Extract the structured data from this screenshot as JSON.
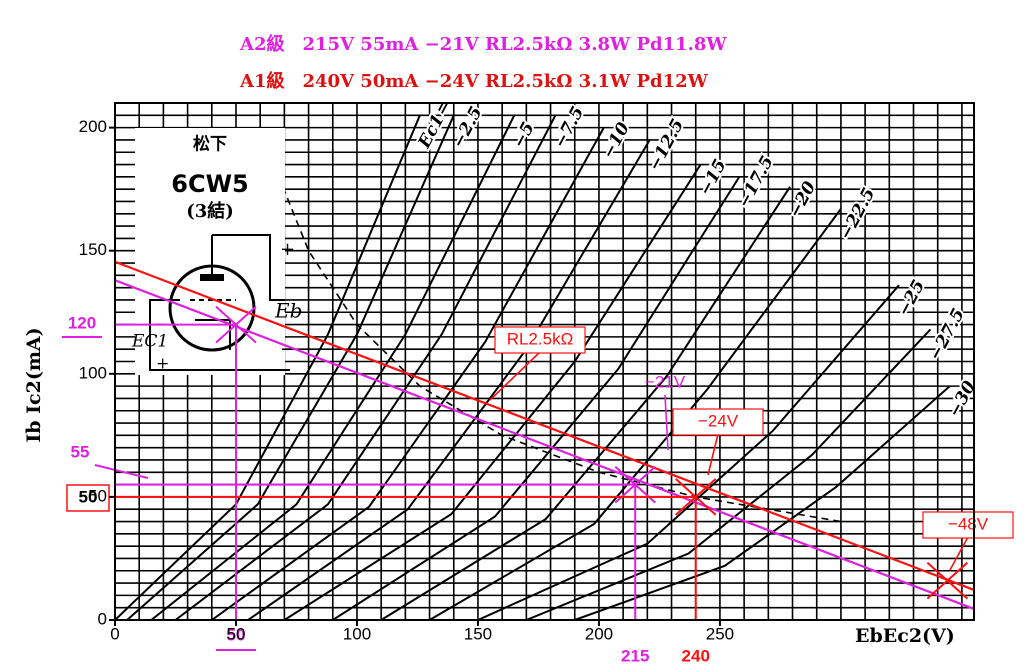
{
  "chart_data": {
    "type": "line",
    "header": [
      {
        "text": "A2級　215V 55mA −21V RL2.5kΩ 3.8W Pd11.8W",
        "color": "#e020e0"
      },
      {
        "text": "A1級　240V 50mA −24V RL2.5kΩ 3.1W Pd12W",
        "color": "#e01010"
      }
    ],
    "tube": [
      "松下",
      "6CW5",
      "(3結)"
    ],
    "schematic_labels": [
      "Eb",
      "EC1",
      "+",
      "−",
      "+",
      "−"
    ],
    "xlabel": "EbEc2(V)",
    "ylabel": "Ib Ic2(mA)",
    "xlim": [
      0,
      355
    ],
    "ylim": [
      0,
      210
    ],
    "xticks": [
      0,
      50,
      100,
      150,
      200,
      250
    ],
    "yticks": [
      0,
      50,
      100,
      150,
      200
    ],
    "grid": {
      "x": 10,
      "y": 5
    },
    "series": [
      {
        "name": "Ec1＝0V",
        "color": "#000000",
        "x": [
          0,
          50,
          88,
          126
        ],
        "values": [
          0,
          47,
          116,
          205
        ]
      },
      {
        "name": "−2.5",
        "color": "#000000",
        "x": [
          5,
          59,
          100,
          140
        ],
        "values": [
          0,
          47,
          116,
          205
        ]
      },
      {
        "name": "−5",
        "color": "#000000",
        "x": [
          15,
          75,
          120,
          165
        ],
        "values": [
          0,
          47,
          116,
          205
        ]
      },
      {
        "name": "−7.5",
        "color": "#000000",
        "x": [
          25,
          88,
          135,
          182
        ],
        "values": [
          0,
          47,
          116,
          205
        ]
      },
      {
        "name": "−10",
        "color": "#000000",
        "x": [
          40,
          105,
          153,
          202
        ],
        "values": [
          0,
          46,
          113,
          200
        ]
      },
      {
        "name": "−12.5",
        "color": "#000000",
        "x": [
          55,
          121,
          170,
          221
        ],
        "values": [
          0,
          45,
          110,
          195
        ]
      },
      {
        "name": "−15",
        "color": "#000000",
        "x": [
          70,
          139,
          190,
          242
        ],
        "values": [
          0,
          43,
          105,
          185
        ]
      },
      {
        "name": "−17.5",
        "color": "#000000",
        "x": [
          90,
          157,
          208,
          258
        ],
        "values": [
          0,
          42,
          102,
          180
        ]
      },
      {
        "name": "−20",
        "color": "#000000",
        "x": [
          110,
          178,
          228,
          279
        ],
        "values": [
          0,
          41,
          99,
          176
        ]
      },
      {
        "name": "−22.5",
        "color": "#000000",
        "x": [
          130,
          198,
          245,
          300
        ],
        "values": [
          0,
          39,
          94,
          167
        ]
      },
      {
        "name": "−25",
        "color": "#000000",
        "x": [
          150,
          220,
          272,
          324
        ],
        "values": [
          0,
          31,
          77,
          136
        ]
      },
      {
        "name": "−27.5",
        "color": "#000000",
        "x": [
          170,
          237,
          288,
          337
        ],
        "values": [
          0,
          27,
          67,
          118
        ]
      },
      {
        "name": "−30",
        "color": "#000000",
        "x": [
          190,
          252,
          298,
          345
        ],
        "values": [
          0,
          22,
          54,
          95
        ]
      }
    ],
    "pd_curve": {
      "color": "#000000",
      "x": [
        62,
        80,
        100,
        126,
        160,
        200,
        240,
        300
      ],
      "values": [
        194,
        150,
        120,
        95,
        75,
        60,
        50,
        40
      ]
    },
    "load_lines": [
      {
        "color": "#ff1010",
        "x": [
          0,
          355
        ],
        "values": [
          145.5,
          12.2
        ]
      },
      {
        "color": "#e020e0",
        "x": [
          0,
          355
        ],
        "values": [
          138,
          4.5
        ]
      }
    ],
    "operating_points": [
      {
        "v": 215,
        "i": 55,
        "color": "#e020e0"
      },
      {
        "v": 50,
        "i": 120,
        "color": "#e020e0"
      },
      {
        "v": 240,
        "i": 50,
        "color": "#ff1010"
      },
      {
        "v": 344,
        "i": 16,
        "color": "#ff1010"
      }
    ],
    "annotations": [
      {
        "text": "RL2.5kΩ",
        "color": "#ff1010"
      },
      {
        "text": "−21V",
        "color": "#e020e0"
      },
      {
        "text": "−24V",
        "color": "#ff1010"
      },
      {
        "text": "−48V",
        "color": "#ff1010"
      }
    ]
  }
}
